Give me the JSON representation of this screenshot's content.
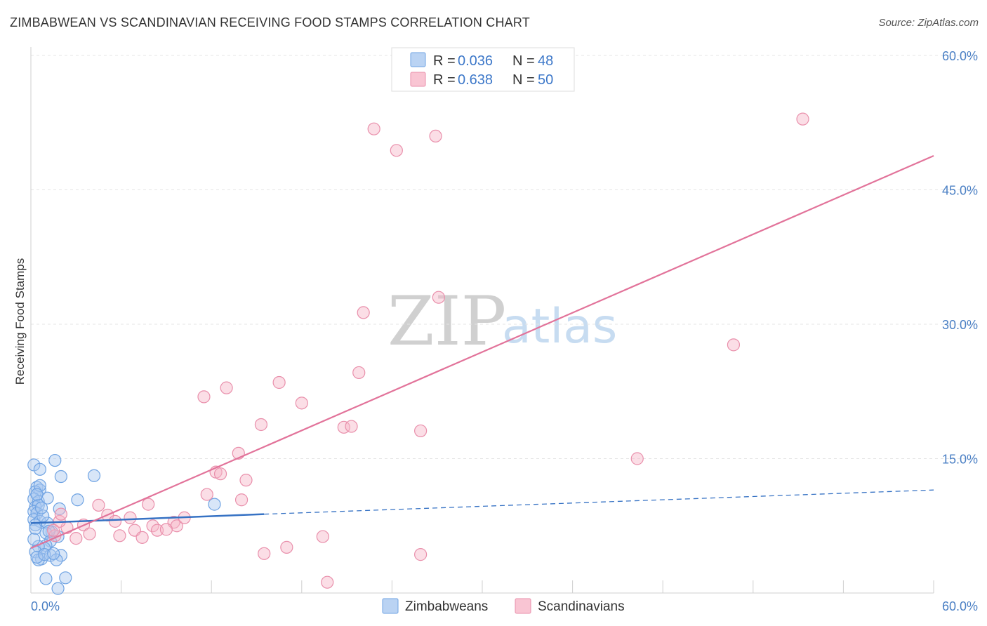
{
  "header": {
    "title": "ZIMBABWEAN VS SCANDINAVIAN RECEIVING FOOD STAMPS CORRELATION CHART",
    "source": "Source: ZipAtlas.com"
  },
  "watermark": {
    "zip": "ZIP",
    "atlas": "atlas"
  },
  "chart_data": {
    "type": "scatter",
    "title": "ZIMBABWEAN VS SCANDINAVIAN RECEIVING FOOD STAMPS CORRELATION CHART",
    "xlabel": "",
    "ylabel": "Receiving Food Stamps",
    "xlim": [
      0,
      60
    ],
    "ylim": [
      0,
      60
    ],
    "x_tick_labels": {
      "left": "0.0%",
      "right": "60.0%"
    },
    "y_ticks": [
      {
        "value": 15,
        "label": "15.0%"
      },
      {
        "value": 30,
        "label": "30.0%"
      },
      {
        "value": 45,
        "label": "45.0%"
      },
      {
        "value": 60,
        "label": "60.0%"
      }
    ],
    "grid": true,
    "legend": {
      "position": "top-center",
      "rows": [
        {
          "r_label": "R =",
          "r_value": "0.036",
          "n_label": "N =",
          "n_value": "48",
          "color": "#a9c8f0"
        },
        {
          "r_label": "R =",
          "r_value": "0.638",
          "n_label": "N =",
          "n_value": "50",
          "color": "#f7b6c8"
        }
      ]
    },
    "series": [
      {
        "name": "Zimbabweans",
        "color": "#6fa3e3",
        "fill": "#a9c8f0",
        "trend": {
          "x0": 0,
          "y0": 7.8,
          "x1": 15.5,
          "y1": 8.8,
          "dash_to_x": 60,
          "dash_to_y": 11.5,
          "color": "#3672c4"
        },
        "points": [
          [
            0.2,
            14.3
          ],
          [
            0.6,
            13.8
          ],
          [
            1.6,
            14.8
          ],
          [
            0.4,
            11.8
          ],
          [
            0.6,
            11.5
          ],
          [
            0.3,
            11.3
          ],
          [
            0.2,
            10.5
          ],
          [
            0.5,
            10.2
          ],
          [
            1.1,
            10.6
          ],
          [
            0.3,
            9.6
          ],
          [
            0.5,
            9.8
          ],
          [
            0.2,
            9.1
          ],
          [
            0.4,
            8.9
          ],
          [
            1.9,
            9.4
          ],
          [
            0.2,
            8.2
          ],
          [
            0.6,
            8.0
          ],
          [
            0.3,
            7.6
          ],
          [
            1.1,
            7.8
          ],
          [
            0.3,
            7.2
          ],
          [
            1.4,
            6.8
          ],
          [
            1.0,
            6.7
          ],
          [
            1.8,
            6.3
          ],
          [
            1.3,
            5.8
          ],
          [
            1.0,
            5.3
          ],
          [
            0.9,
            5.0
          ],
          [
            0.5,
            5.2
          ],
          [
            0.3,
            4.6
          ],
          [
            2.0,
            13.0
          ],
          [
            4.2,
            13.1
          ],
          [
            3.1,
            10.4
          ],
          [
            12.2,
            9.9
          ],
          [
            0.7,
            3.8
          ],
          [
            1.3,
            4.2
          ],
          [
            2.0,
            4.2
          ],
          [
            1.7,
            3.7
          ],
          [
            0.5,
            3.7
          ],
          [
            0.4,
            4.0
          ],
          [
            0.9,
            4.3
          ],
          [
            1.0,
            1.6
          ],
          [
            2.3,
            1.7
          ],
          [
            1.8,
            0.5
          ],
          [
            0.2,
            6.0
          ],
          [
            0.6,
            12.0
          ],
          [
            0.8,
            8.6
          ],
          [
            1.2,
            6.9
          ],
          [
            0.4,
            11.0
          ],
          [
            0.7,
            9.5
          ],
          [
            1.5,
            4.4
          ]
        ]
      },
      {
        "name": "Scandinavians",
        "color": "#e98fab",
        "fill": "#f7b6c8",
        "trend": {
          "x0": 0,
          "y0": 5.0,
          "x1": 60,
          "y1": 48.8,
          "color": "#e2739a"
        },
        "points": [
          [
            22.8,
            51.8
          ],
          [
            26.9,
            51.0
          ],
          [
            24.3,
            49.4
          ],
          [
            51.3,
            52.9
          ],
          [
            27.1,
            33.0
          ],
          [
            22.1,
            31.3
          ],
          [
            46.7,
            27.7
          ],
          [
            21.8,
            24.6
          ],
          [
            16.5,
            23.5
          ],
          [
            13.0,
            22.9
          ],
          [
            11.5,
            21.9
          ],
          [
            18.0,
            21.2
          ],
          [
            15.3,
            18.8
          ],
          [
            20.8,
            18.5
          ],
          [
            21.3,
            18.6
          ],
          [
            25.9,
            18.1
          ],
          [
            40.3,
            15.0
          ],
          [
            13.8,
            15.6
          ],
          [
            12.3,
            13.5
          ],
          [
            12.6,
            13.3
          ],
          [
            14.3,
            12.6
          ],
          [
            11.7,
            11.0
          ],
          [
            14.0,
            10.4
          ],
          [
            7.8,
            9.9
          ],
          [
            4.5,
            9.8
          ],
          [
            5.1,
            8.7
          ],
          [
            6.6,
            8.4
          ],
          [
            8.1,
            7.5
          ],
          [
            9.5,
            7.9
          ],
          [
            9.7,
            7.5
          ],
          [
            10.2,
            8.4
          ],
          [
            3.5,
            7.6
          ],
          [
            2.4,
            7.3
          ],
          [
            1.9,
            8.0
          ],
          [
            1.6,
            6.4
          ],
          [
            5.6,
            8.0
          ],
          [
            6.9,
            7.0
          ],
          [
            8.4,
            7.0
          ],
          [
            9.0,
            7.1
          ],
          [
            3.9,
            6.6
          ],
          [
            5.9,
            6.4
          ],
          [
            3.0,
            6.1
          ],
          [
            7.4,
            6.2
          ],
          [
            17.0,
            5.1
          ],
          [
            19.4,
            6.3
          ],
          [
            15.5,
            4.4
          ],
          [
            25.9,
            4.3
          ],
          [
            19.7,
            1.2
          ],
          [
            2.0,
            8.8
          ],
          [
            1.5,
            7.0
          ]
        ]
      }
    ]
  }
}
